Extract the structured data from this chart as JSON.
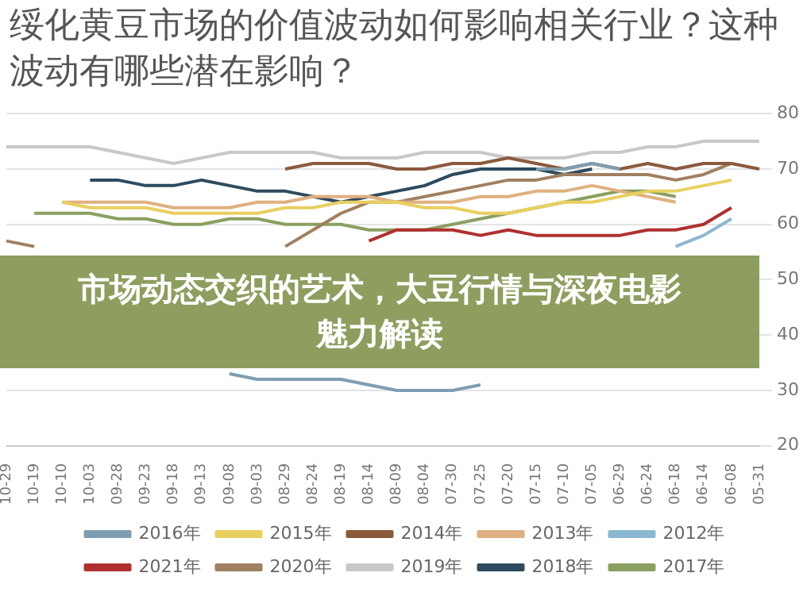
{
  "chart_data": {
    "type": "line",
    "title": "绥化黄豆市场的价值波动如何影响相关行业？这种波动有哪些潜在影响？",
    "annotations": [
      "市场动态交织的艺术，大豆行情与深夜电影魅力解读"
    ],
    "categories": [
      "10-29",
      "10-19",
      "10-10",
      "10-03",
      "09-28",
      "09-23",
      "09-18",
      "09-13",
      "09-08",
      "09-03",
      "08-29",
      "08-24",
      "08-19",
      "08-14",
      "08-09",
      "08-04",
      "07-30",
      "07-25",
      "07-20",
      "07-15",
      "07-10",
      "07-05",
      "06-29",
      "06-24",
      "06-18",
      "06-14",
      "06-08",
      "05-31"
    ],
    "series": [
      {
        "name": "2016年",
        "color": "#7f9db0",
        "values": [
          null,
          null,
          null,
          null,
          null,
          null,
          null,
          null,
          33,
          32,
          32,
          32,
          32,
          31,
          30,
          30,
          30,
          31,
          null,
          70,
          70,
          71,
          70,
          null,
          null,
          null,
          null,
          null
        ]
      },
      {
        "name": "2015年",
        "color": "#e8d060",
        "values": [
          null,
          null,
          64,
          63,
          63,
          63,
          62,
          62,
          62,
          62,
          63,
          63,
          64,
          64,
          64,
          63,
          63,
          62,
          62,
          63,
          64,
          64,
          65,
          66,
          66,
          67,
          68,
          null
        ]
      },
      {
        "name": "2014年",
        "color": "#8b5a3c",
        "values": [
          null,
          null,
          null,
          null,
          null,
          null,
          null,
          null,
          null,
          null,
          70,
          71,
          71,
          71,
          70,
          70,
          71,
          71,
          72,
          71,
          70,
          71,
          70,
          71,
          70,
          71,
          71,
          70
        ]
      },
      {
        "name": "2013年",
        "color": "#e0b080",
        "values": [
          null,
          null,
          64,
          64,
          64,
          64,
          63,
          63,
          63,
          64,
          64,
          65,
          65,
          65,
          64,
          64,
          64,
          65,
          65,
          66,
          66,
          67,
          66,
          65,
          64,
          null,
          null,
          null
        ]
      },
      {
        "name": "2012年",
        "color": "#8ab8d0",
        "values": [
          null,
          null,
          null,
          null,
          null,
          null,
          null,
          null,
          null,
          null,
          null,
          null,
          null,
          null,
          null,
          null,
          null,
          null,
          null,
          null,
          null,
          null,
          null,
          null,
          56,
          58,
          61,
          null
        ]
      },
      {
        "name": "2021年",
        "color": "#b03030",
        "values": [
          null,
          null,
          null,
          null,
          null,
          null,
          null,
          null,
          null,
          null,
          null,
          null,
          null,
          57,
          59,
          59,
          59,
          58,
          59,
          58,
          58,
          58,
          58,
          59,
          59,
          60,
          63,
          null
        ]
      },
      {
        "name": "2020年",
        "color": "#a08060",
        "values": [
          57,
          56,
          null,
          null,
          null,
          null,
          null,
          null,
          null,
          null,
          56,
          59,
          62,
          64,
          64,
          65,
          66,
          67,
          68,
          68,
          69,
          69,
          69,
          69,
          68,
          69,
          71,
          null
        ]
      },
      {
        "name": "2019年",
        "color": "#c8c8c8",
        "values": [
          74,
          74,
          74,
          74,
          73,
          72,
          71,
          72,
          73,
          73,
          73,
          73,
          72,
          72,
          72,
          73,
          73,
          73,
          72,
          72,
          72,
          73,
          73,
          74,
          74,
          75,
          75,
          75
        ]
      },
      {
        "name": "2018年",
        "color": "#2e4a5e",
        "values": [
          null,
          null,
          null,
          68,
          68,
          67,
          67,
          68,
          67,
          66,
          66,
          65,
          64,
          65,
          66,
          67,
          69,
          70,
          70,
          70,
          69,
          70,
          null,
          null,
          null,
          null,
          null,
          null
        ]
      },
      {
        "name": "2017年",
        "color": "#8aa060",
        "values": [
          null,
          62,
          62,
          62,
          61,
          61,
          60,
          60,
          61,
          61,
          60,
          60,
          60,
          59,
          59,
          59,
          60,
          61,
          62,
          63,
          64,
          65,
          66,
          66,
          65,
          null,
          null,
          null
        ]
      }
    ],
    "ylim": [
      20,
      80
    ],
    "yticks": [
      20,
      30,
      40,
      50,
      60,
      70,
      80
    ],
    "grid": "y",
    "legend": "bottom",
    "marker": "none",
    "line_style": "solid"
  }
}
